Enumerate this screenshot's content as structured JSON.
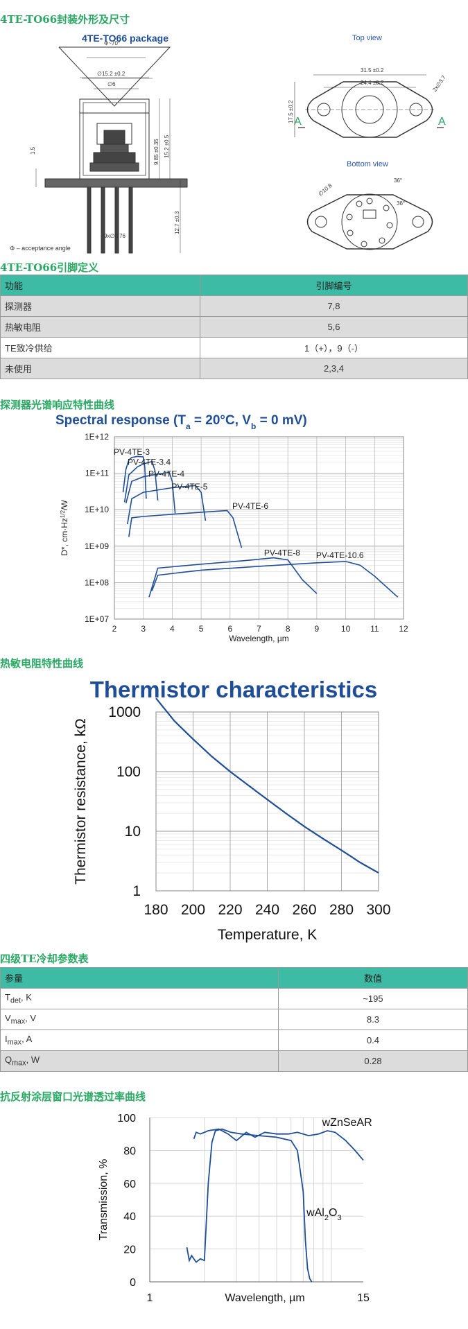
{
  "section_titles": {
    "package": "4TE-TO66封装外形及尺寸",
    "pins": "4TE-TO66引脚定义",
    "spectral": "探测器光谱响应特性曲线",
    "thermistor": "热敏电阻特性曲线",
    "cooling": "四级TE冷却参数表",
    "window": "抗反射涂层窗口光谱透过率曲线"
  },
  "package_drawing": {
    "title": "4TE-TO66 package",
    "top_view_label": "Top view",
    "bottom_view_label": "Bottom view",
    "acceptance_note": "Φ – acceptance angle",
    "dims": {
      "phi": "Φ~70°",
      "d152": "∅15.2 ±0.2",
      "d6": "∅6",
      "h985": "9.85 ±0.35",
      "h152": "15.2 ±0.5",
      "h15": "1.5",
      "h127": "12.7 ±0.3",
      "pins": "9x∅0.76",
      "w315": "31.5 ±0.2",
      "w244": "24.4 ±0.2",
      "h175": "17.5 ±0.2",
      "r37": "2x∅3.7",
      "a_label": "A",
      "bc": "∅10.8",
      "ang1": "36°",
      "ang2": "36°"
    }
  },
  "pin_table": {
    "headers": [
      "功能",
      "引脚编号"
    ],
    "rows": [
      [
        "探测器",
        "7,8"
      ],
      [
        "热敏电阻",
        "5,6"
      ],
      [
        "TE致冷供给",
        "1（+），9（-）"
      ],
      [
        "未使用",
        "2,3,4"
      ]
    ]
  },
  "cooling_table": {
    "headers": [
      "参量",
      "数值"
    ],
    "rows": [
      {
        "name": "T",
        "sub": "det",
        "unit": ", K",
        "value": "~195"
      },
      {
        "name": "V",
        "sub": "max",
        "unit": ", V",
        "value": "8.3"
      },
      {
        "name": "I",
        "sub": "max",
        "unit": ", A",
        "value": "0.4"
      },
      {
        "name": "Q",
        "sub": "max",
        "unit": ", W",
        "value": "0.28"
      }
    ]
  },
  "chart_data": [
    {
      "type": "line",
      "title": "Spectral response (Tₐ = 20°C, V_b = 0 mV)",
      "title_parts": {
        "pre": "Spectral response (T",
        "sub1": "a",
        "mid": " = 20°C, V",
        "sub2": "b",
        "post": " = 0 mV)"
      },
      "xlabel": "Wavelength, µm",
      "ylabel": "D*, cm·Hz^1/2/W",
      "ylabel_parts": {
        "pre": "D*, cm·Hz",
        "sup": "1/2",
        "post": "/W"
      },
      "xlim": [
        2,
        12
      ],
      "ylim": [
        10000000.0,
        1000000000000.0
      ],
      "yscale": "log",
      "x_ticks": [
        2,
        3,
        4,
        5,
        6,
        7,
        8,
        9,
        10,
        11,
        12
      ],
      "y_ticks": [
        "1E+07",
        "1E+08",
        "1E+09",
        "1E+10",
        "1E+11",
        "1E+12"
      ],
      "grid": true,
      "color": "#1f4e96",
      "series": [
        {
          "name": "PV-4TE-3",
          "x": [
            2.3,
            2.4,
            2.5,
            2.6,
            2.8,
            3.0,
            3.05,
            3.1
          ],
          "y": [
            30000000000.0,
            130000000000.0,
            230000000000.0,
            270000000000.0,
            290000000000.0,
            280000000000.0,
            150000000000.0,
            20000000000.0
          ],
          "label_at": [
            2.6,
            320000000000.0
          ]
        },
        {
          "name": "PV-4TE-3.4",
          "x": [
            2.35,
            2.5,
            2.8,
            3.0,
            3.3,
            3.4,
            3.5
          ],
          "y": [
            16000000000.0,
            90000000000.0,
            150000000000.0,
            180000000000.0,
            210000000000.0,
            120000000000.0,
            18000000000.0
          ],
          "label_at": [
            3.2,
            170000000000.0
          ]
        },
        {
          "name": "PV-4TE-4",
          "x": [
            2.4,
            2.6,
            3.0,
            3.5,
            3.9,
            4.0,
            4.1
          ],
          "y": [
            15000000000.0,
            60000000000.0,
            80000000000.0,
            95000000000.0,
            105000000000.0,
            60000000000.0,
            8000000000.0
          ],
          "label_at": [
            3.8,
            80000000000.0
          ]
        },
        {
          "name": "PV-4TE-5",
          "x": [
            2.45,
            2.6,
            3.0,
            4.0,
            4.8,
            5.0,
            5.15
          ],
          "y": [
            4000000000.0,
            20000000000.0,
            30000000000.0,
            40000000000.0,
            46000000000.0,
            30000000000.0,
            5000000000.0
          ],
          "label_at": [
            4.6,
            36000000000.0
          ]
        },
        {
          "name": "PV-4TE-6",
          "x": [
            2.5,
            2.6,
            3.0,
            4.0,
            5.0,
            5.9,
            6.1,
            6.4
          ],
          "y": [
            1800000000.0,
            6000000000.0,
            6500000000.0,
            7500000000.0,
            8500000000.0,
            9500000000.0,
            6000000000.0,
            900000000.0
          ],
          "label_at": [
            6.7,
            10500000000.0
          ]
        },
        {
          "name": "PV-4TE-8",
          "x": [
            3.2,
            3.5,
            5.0,
            6.5,
            7.5,
            8.0,
            8.5,
            9.0
          ],
          "y": [
            40000000.0,
            250000000.0,
            320000000.0,
            400000000.0,
            480000000.0,
            420000000.0,
            120000000.0,
            50000000.0
          ],
          "label_at": [
            7.8,
            550000000.0
          ]
        },
        {
          "name": "PV-4TE-10.6",
          "x": [
            3.3,
            3.5,
            5.0,
            7.0,
            9.0,
            10.0,
            10.5,
            11.0,
            11.8
          ],
          "y": [
            60000000.0,
            160000000.0,
            220000000.0,
            280000000.0,
            350000000.0,
            380000000.0,
            300000000.0,
            150000000.0,
            40000000.0
          ],
          "label_at": [
            9.8,
            470000000.0
          ]
        }
      ]
    },
    {
      "type": "line",
      "title": "Thermistor characteristics",
      "xlabel": "Temperature, K",
      "ylabel": "Thermistor resistance, kΩ",
      "xlim": [
        180,
        300
      ],
      "ylim": [
        1,
        1000
      ],
      "yscale": "log",
      "x_ticks": [
        180,
        200,
        220,
        240,
        260,
        280,
        300
      ],
      "y_ticks": [
        "1",
        "10",
        "100",
        "1000"
      ],
      "grid": true,
      "color": "#1f4e96",
      "series": [
        {
          "x": [
            180,
            190,
            200,
            210,
            220,
            230,
            240,
            250,
            260,
            270,
            280,
            290,
            300
          ],
          "y": [
            1700,
            700,
            350,
            180,
            100,
            58,
            34,
            20,
            12,
            7.5,
            4.8,
            3.0,
            2.0
          ]
        }
      ]
    },
    {
      "type": "line",
      "xlabel": "Wavelength, µm",
      "ylabel": "Transmission, %",
      "xlim": [
        1,
        15
      ],
      "ylim": [
        0,
        100
      ],
      "xscale": "log",
      "x_ticks": [
        "1",
        "15"
      ],
      "y_ticks": [
        0,
        20,
        40,
        60,
        80,
        100
      ],
      "grid": true,
      "color": "#1f4e96",
      "series": [
        {
          "name": "wZnSeAR",
          "x": [
            1.75,
            1.8,
            1.9,
            2.1,
            2.4,
            2.7,
            3,
            3.4,
            3.8,
            4.3,
            5,
            5.8,
            6.5,
            7.5,
            8.5,
            9.5,
            10.5,
            12,
            13.5,
            15
          ],
          "y": [
            87,
            91,
            90,
            92,
            93,
            90,
            86,
            91,
            88,
            91,
            90,
            90,
            91,
            89,
            90,
            92,
            91,
            86,
            80,
            74
          ],
          "label_at": [
            8.9,
            95
          ]
        },
        {
          "name_parts": {
            "pre": "wAl",
            "sub1": "2",
            "mid": "O",
            "sub2": "3"
          },
          "x": [
            1.6,
            1.65,
            1.7,
            1.8,
            1.9,
            2.0,
            2.1,
            2.2,
            2.3,
            2.5,
            2.8,
            3.2,
            4,
            5,
            6,
            6.5,
            7,
            7.2,
            7.4,
            7.6,
            7.8
          ],
          "y": [
            21,
            13,
            16,
            12,
            14,
            13,
            60,
            85,
            92,
            93,
            91,
            90,
            89,
            88,
            86,
            80,
            55,
            25,
            8,
            2,
            0
          ],
          "label_at": [
            7.3,
            40
          ]
        }
      ]
    }
  ]
}
